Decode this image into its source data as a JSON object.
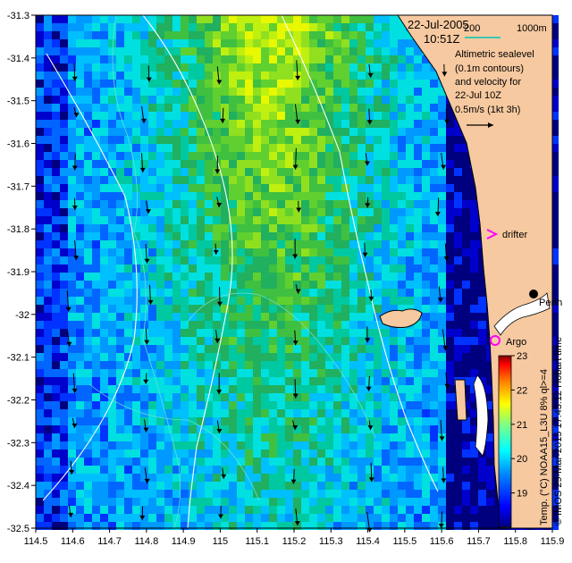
{
  "header": {
    "date": "22-Jul-2005",
    "time": "10:51Z",
    "scale_label": "200",
    "scale_depth": "1000m"
  },
  "info_lines": [
    "Altimetric sealevel",
    "(0.1m contours)",
    "and velocity for",
    "22-Jul 10Z",
    "0.5m/s (1kt 3h)"
  ],
  "places": {
    "drifter_label": "drifter",
    "argo_label": "Argo",
    "city_label": "Perth"
  },
  "credit": "© IMOS 29-Mar-2015 17:43:12 Hobart time",
  "colorbar_label": "Temp. (°C) NOAA15_L3U 8% ql>=4",
  "colors": {
    "land": "#f7c9a0",
    "deep_blue": "#00007f",
    "accent_cyan": "#66e0d0",
    "drifter_magenta": "#ff00ff"
  },
  "chart_data": {
    "type": "heatmap",
    "title": "",
    "xlabel": "",
    "ylabel": "",
    "xlim": [
      114.5,
      115.9
    ],
    "ylim": [
      -32.5,
      -31.3
    ],
    "x_ticks": [
      "114.5",
      "114.6",
      "114.7",
      "114.8",
      "114.9",
      "115",
      "115.1",
      "115.2",
      "115.3",
      "115.4",
      "115.5",
      "115.6",
      "115.7",
      "115.8",
      "115.9"
    ],
    "y_ticks": [
      "-31.3",
      "-31.4",
      "-31.5",
      "-31.6",
      "-31.7",
      "-31.8",
      "-31.9",
      "-32",
      "-32.1",
      "-32.2",
      "-32.3",
      "-32.4",
      "-32.5"
    ],
    "colorbar": {
      "min": 18,
      "max": 23,
      "ticks": [
        "19",
        "20",
        "21",
        "22",
        "23"
      ],
      "stops": [
        "#00007f",
        "#0000ff",
        "#0080ff",
        "#00ffff",
        "#80ff80",
        "#ffff00",
        "#ff8000",
        "#ff0000",
        "#7f0000"
      ]
    },
    "points": {
      "drifter": [
        115.74,
        -31.81
      ],
      "argo": [
        115.745,
        -32.075
      ],
      "perth": [
        115.86,
        -31.955
      ]
    }
  }
}
